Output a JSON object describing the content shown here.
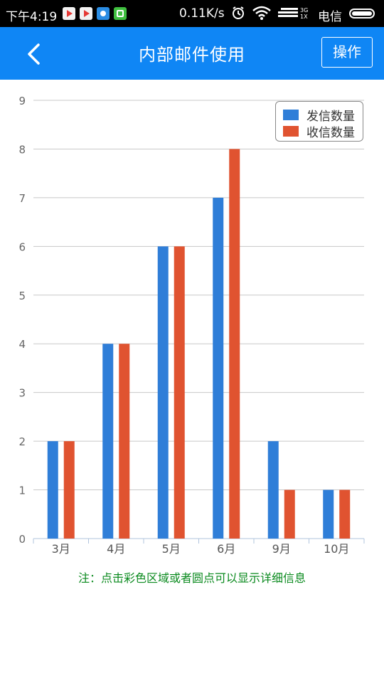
{
  "status_bar": {
    "time": "下午4:19",
    "network_speed": "0.11K/s",
    "carrier": "电信",
    "icons": [
      "app-play-icon",
      "app-play-icon",
      "app-blue-icon",
      "app-green-icon",
      "alarm-icon",
      "wifi-icon",
      "signal-icon",
      "battery-icon"
    ]
  },
  "app_bar": {
    "title": "内部邮件使用",
    "action_label": "操作",
    "back_icon": "chevron-left-icon",
    "color": "#0f86f5"
  },
  "chart_data": {
    "type": "bar",
    "categories": [
      "3月",
      "4月",
      "5月",
      "6月",
      "9月",
      "10月"
    ],
    "series": [
      {
        "name": "发信数量",
        "values": [
          2,
          4,
          6,
          7,
          2,
          1
        ],
        "color": "#2f7ed8"
      },
      {
        "name": "收信数量",
        "values": [
          2,
          4,
          6,
          8,
          1,
          1
        ],
        "color": "#e05330"
      }
    ],
    "ylim": [
      0,
      9
    ],
    "yticks": [
      0,
      1,
      2,
      3,
      4,
      5,
      6,
      7,
      8,
      9
    ],
    "grid": true,
    "legend_position": "top-right"
  },
  "note": "注：点击彩色区域或者圆点可以显示详细信息"
}
